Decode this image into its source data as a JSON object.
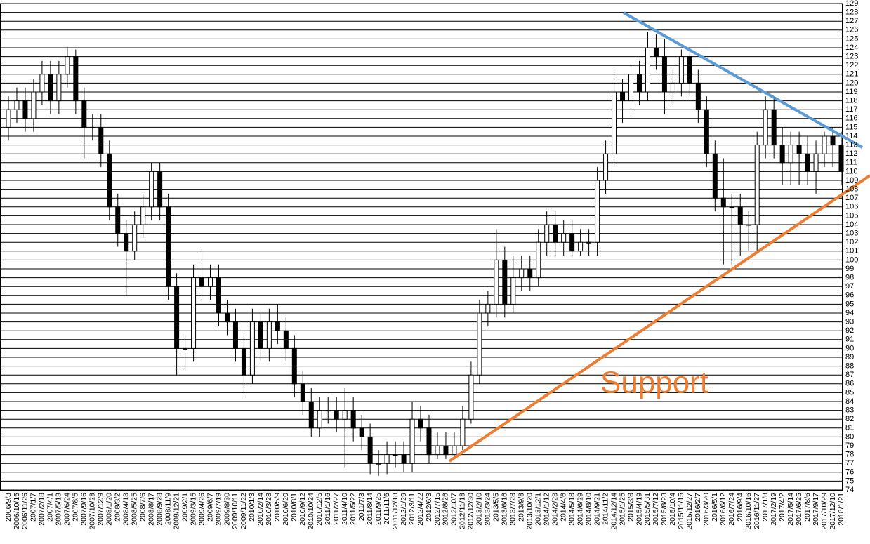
{
  "chart_data": {
    "type": "candlestick",
    "annotations": [
      "Support"
    ],
    "categories": [
      "2006/9/3",
      "2006/10/15",
      "2006/11/26",
      "2007/1/7",
      "2007/2/18",
      "2007/4/1",
      "2007/5/13",
      "2007/6/24",
      "2007/8/5",
      "2007/9/16",
      "2007/10/28",
      "2007/12/9",
      "2008/1/20",
      "2008/3/2",
      "2008/4/13",
      "2008/5/25",
      "2008/7/6",
      "2008/8/17",
      "2008/9/28",
      "2008/11/9",
      "2008/12/21",
      "2009/2/1",
      "2009/3/15",
      "2009/4/26",
      "2009/6/7",
      "2009/7/19",
      "2009/8/30",
      "2009/10/11",
      "2009/11/22",
      "2010/1/3",
      "2010/2/14",
      "2010/3/28",
      "2010/5/9",
      "2010/6/20",
      "2010/8/1",
      "2010/9/12",
      "2010/10/24",
      "2010/12/5",
      "2011/1/16",
      "2011/2/27",
      "2011/4/10",
      "2011/5/22",
      "2011/7/3",
      "2011/8/14",
      "2011/9/25",
      "2011/11/6",
      "2011/12/18",
      "2012/1/29",
      "2012/3/11",
      "2012/4/22",
      "2012/6/3",
      "2012/7/15",
      "2012/8/26",
      "2012/10/7",
      "2012/11/18",
      "2012/12/30",
      "2013/2/10",
      "2013/3/24",
      "2013/5/5",
      "2013/6/16",
      "2013/7/28",
      "2013/9/8",
      "2013/10/20",
      "2013/12/1",
      "2014/1/12",
      "2014/2/23",
      "2014/4/6",
      "2014/5/18",
      "2014/6/29",
      "2014/8/10",
      "2014/9/21",
      "2014/11/2",
      "2014/12/14",
      "2015/1/25",
      "2015/3/8",
      "2015/4/19",
      "2015/5/31",
      "2015/7/12",
      "2015/8/23",
      "2015/10/4",
      "2015/11/15",
      "2015/12/27",
      "2016/2/7",
      "2016/3/20",
      "2016/5/1",
      "2016/6/12",
      "2016/7/24",
      "2016/9/4",
      "2016/10/16",
      "2016/11/27",
      "2017/1/8",
      "2017/2/19",
      "2017/4/2",
      "2017/5/14",
      "2017/6/25",
      "2017/8/6",
      "2017/9/17",
      "2017/10/29",
      "2017/12/10",
      "2018/1/21"
    ],
    "open": [
      115,
      117,
      118,
      116,
      119,
      121,
      118,
      121,
      123,
      118,
      115,
      115,
      112,
      106,
      103,
      101,
      104,
      106,
      110,
      106,
      97,
      90,
      90,
      98,
      97,
      98,
      94,
      93,
      90,
      87,
      93,
      90,
      93,
      92,
      90,
      86,
      84,
      81,
      83,
      83,
      82,
      83,
      81,
      80,
      77,
      77,
      78,
      78,
      77,
      82,
      81,
      78,
      79,
      78,
      79,
      82,
      87,
      94,
      95,
      100,
      95,
      98,
      99,
      98,
      102,
      104,
      102,
      103,
      101,
      102,
      102,
      109,
      112,
      119,
      118,
      121,
      119,
      124,
      123,
      119,
      120,
      123,
      120,
      117,
      112,
      107,
      106,
      106,
      104,
      104,
      113,
      117,
      113,
      111,
      113,
      112,
      110,
      112,
      114,
      113
    ],
    "high": [
      118.5,
      119.5,
      119.5,
      120.5,
      122.5,
      122.5,
      122.5,
      124.1,
      123.8,
      119.5,
      116.5,
      116.5,
      113.5,
      107.5,
      104.5,
      105.5,
      107.5,
      111,
      111,
      107.5,
      98.5,
      91.5,
      99.5,
      101,
      99.5,
      99.5,
      95.5,
      94.5,
      91.5,
      94.5,
      94,
      94.5,
      95,
      93.5,
      91.5,
      87.5,
      85.5,
      84.5,
      84.5,
      84.5,
      85.5,
      84.5,
      82.5,
      81.5,
      78.5,
      79.5,
      79.5,
      79.5,
      84,
      83.5,
      82.5,
      80.5,
      80.5,
      80.5,
      83.5,
      88.5,
      95.5,
      96.5,
      103.5,
      101.5,
      100.5,
      100.5,
      100.5,
      103.5,
      105.5,
      105.5,
      104.5,
      104.5,
      103.5,
      103.5,
      110.5,
      113.5,
      121.5,
      120.5,
      122,
      122.5,
      125.8,
      125.5,
      125,
      121.5,
      123.8,
      123.8,
      121.5,
      118.5,
      113.5,
      111.5,
      107.5,
      107.5,
      105.5,
      114.5,
      118.5,
      118.5,
      115,
      114.5,
      114.5,
      114,
      113.5,
      114.5,
      115,
      114.5
    ],
    "low": [
      113.5,
      115.5,
      114.5,
      114.5,
      117.5,
      116.5,
      116.5,
      119.5,
      116.5,
      111.5,
      113.5,
      110.5,
      104.5,
      101.5,
      96,
      100,
      102.5,
      104.5,
      104.5,
      95.5,
      87,
      87.5,
      88.5,
      95.5,
      95.5,
      92.5,
      91.5,
      88.5,
      84.8,
      86,
      88.5,
      88.5,
      90.5,
      88.5,
      84.5,
      82.5,
      80,
      80,
      81.5,
      80.5,
      76.5,
      79.5,
      78.5,
      75.8,
      75.6,
      75.8,
      76.5,
      76,
      76,
      79.5,
      77,
      77.5,
      77.5,
      77.5,
      78.5,
      81.5,
      86,
      92.5,
      93.5,
      93.5,
      94,
      96.5,
      96.5,
      97,
      100.5,
      100.5,
      100.5,
      100.5,
      100.5,
      100.5,
      100.5,
      107.5,
      110.5,
      115.5,
      116.5,
      117.5,
      118,
      121.5,
      116.5,
      117.5,
      118.5,
      118.5,
      115.5,
      110.5,
      105.5,
      99.5,
      99.5,
      100.5,
      101,
      101,
      111.5,
      111.5,
      108.5,
      108.5,
      108.5,
      108.5,
      107.5,
      110.5,
      110.5,
      108.5
    ],
    "close": [
      117,
      118,
      116,
      119,
      121,
      118,
      121,
      123,
      118,
      115,
      115,
      112,
      106,
      103,
      101,
      104,
      106,
      110,
      106,
      97,
      90,
      90,
      98,
      97,
      98,
      94,
      93,
      90,
      87,
      93,
      90,
      93,
      92,
      90,
      86,
      84,
      81,
      83,
      83,
      82,
      83,
      81,
      80,
      77,
      77,
      78,
      78,
      77,
      82,
      81,
      78,
      79,
      78,
      79,
      82,
      87,
      94,
      95,
      100,
      95,
      98,
      99,
      98,
      102,
      104,
      102,
      103,
      101,
      102,
      102,
      109,
      112,
      119,
      118,
      121,
      119,
      124,
      123,
      119,
      120,
      123,
      120,
      117,
      112,
      107,
      106,
      106,
      104,
      104,
      113,
      117,
      113,
      111,
      113,
      112,
      110,
      112,
      114,
      113,
      110
    ],
    "color": "#000000",
    "ylim": [
      74,
      129
    ],
    "yticks": [
      74,
      75,
      76,
      77,
      78,
      79,
      80,
      81,
      82,
      83,
      84,
      85,
      86,
      87,
      88,
      89,
      90,
      91,
      92,
      93,
      94,
      95,
      96,
      97,
      98,
      99,
      100,
      101,
      102,
      103,
      104,
      105,
      106,
      107,
      108,
      109,
      110,
      111,
      112,
      113,
      114,
      115,
      116,
      117,
      118,
      119,
      120,
      121,
      122,
      123,
      124,
      125,
      126,
      127,
      128,
      129
    ],
    "grid": true
  }
}
